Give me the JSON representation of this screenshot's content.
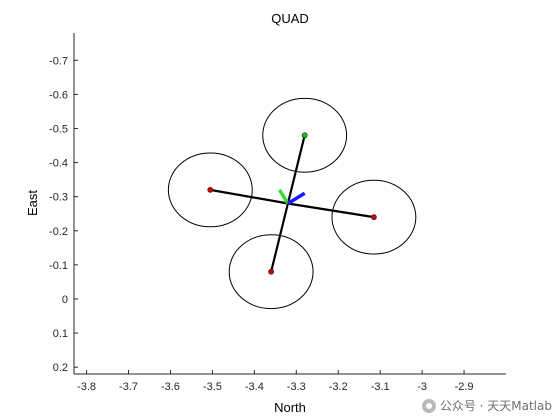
{
  "chart_data": {
    "type": "diagram-plot",
    "title": "QUAD",
    "xlabel": "North",
    "ylabel": "East",
    "xlim": [
      -3.83,
      -2.8
    ],
    "ylim": [
      -0.78,
      0.22
    ],
    "y_reversed": true,
    "grid": false,
    "xticks": [
      -3.8,
      -3.7,
      -3.6,
      -3.5,
      -3.4,
      -3.3,
      -3.2,
      -3.1,
      -3,
      -2.9
    ],
    "xtick_labels": [
      "-3.8",
      "-3.7",
      "-3.6",
      "-3.5",
      "-3.4",
      "-3.3",
      "-3.2",
      "-3.1",
      "-3",
      "-2.9"
    ],
    "yticks": [
      -0.7,
      -0.6,
      -0.5,
      -0.4,
      -0.3,
      -0.2,
      -0.1,
      0,
      0.1,
      0.2
    ],
    "ytick_labels": [
      "-0.7",
      "-0.6",
      "-0.5",
      "-0.4",
      "-0.3",
      "-0.2",
      "-0.1",
      "0",
      "0.1",
      "0.2"
    ],
    "center": {
      "x": -3.32,
      "y": -0.28
    },
    "arms": [
      {
        "tip": {
          "x": -3.28,
          "y": -0.48
        },
        "marker_color": "#00cc00"
      },
      {
        "tip": {
          "x": -3.115,
          "y": -0.24
        },
        "marker_color": "#cc0000"
      },
      {
        "tip": {
          "x": -3.36,
          "y": -0.08
        },
        "marker_color": "#cc0000"
      },
      {
        "tip": {
          "x": -3.505,
          "y": -0.32
        },
        "marker_color": "#cc0000"
      }
    ],
    "rotors": [
      {
        "x": -3.28,
        "y": -0.48,
        "rx": 0.1,
        "ry": 0.1
      },
      {
        "x": -3.115,
        "y": -0.24,
        "rx": 0.1,
        "ry": 0.1
      },
      {
        "x": -3.36,
        "y": -0.08,
        "rx": 0.1,
        "ry": 0.1
      },
      {
        "x": -3.505,
        "y": -0.32,
        "rx": 0.1,
        "ry": 0.1
      }
    ],
    "body_axes": [
      {
        "to": {
          "x": -3.34,
          "y": -0.32
        },
        "color": "#33dd33"
      },
      {
        "to": {
          "x": -3.28,
          "y": -0.31
        },
        "color": "#1a1aff"
      }
    ],
    "arm_color": "#000000",
    "rotor_color": "#000000"
  },
  "watermark": {
    "text": "公众号 · 天天Matlab"
  }
}
